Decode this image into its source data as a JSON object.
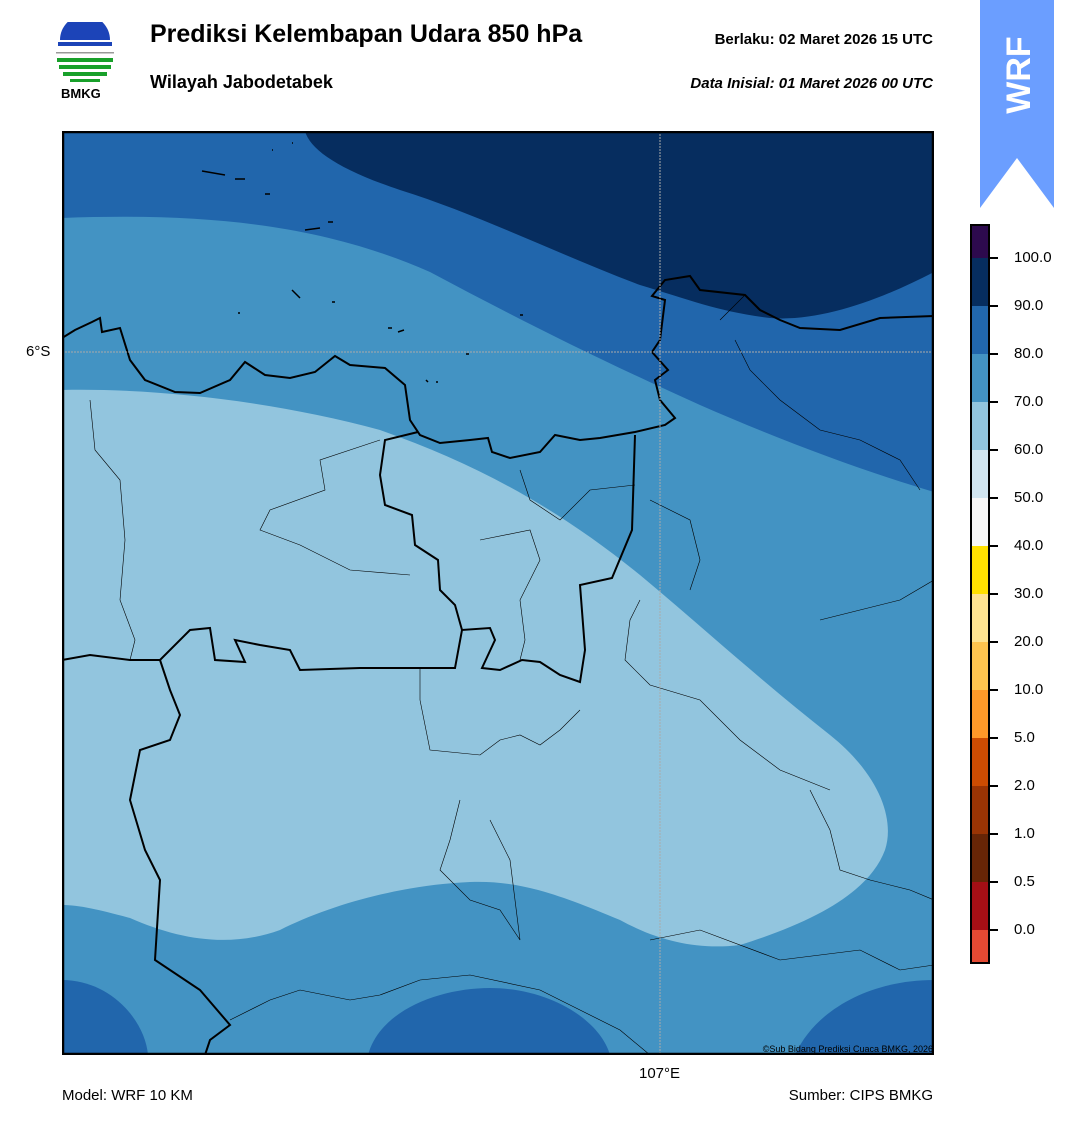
{
  "header": {
    "title": "Prediksi Kelembapan Udara 850 hPa",
    "subtitle": "Wilayah Jabodetabek",
    "valid_label": "Berlaku:  02 Maret 2026 15 UTC",
    "init_label": "Data Inisial:  01 Maret 2026 00 UTC",
    "logo_text": "BMKG",
    "badge_text": "WRF",
    "badge_color": "#6b9eff"
  },
  "map": {
    "lat_label": "6°S",
    "lon_label": "107°E",
    "credit": "©Sub Bidang Prediksi Cuaca BMKG, 2026"
  },
  "colorbar": {
    "colors": [
      "#2d0a4e",
      "#062d5f",
      "#2166ac",
      "#4393c3",
      "#92c5de",
      "#d1e5f0",
      "#f7f7f7",
      "#ffe000",
      "#fee391",
      "#fec44f",
      "#fe9929",
      "#cc4c02",
      "#993404",
      "#662506",
      "#a50f15",
      "#e34a33"
    ],
    "ticks": [
      "100.0",
      "90.0",
      "80.0",
      "70.0",
      "60.0",
      "50.0",
      "40.0",
      "30.0",
      "20.0",
      "10.0",
      "5.0",
      "2.0",
      "1.0",
      "0.5",
      "0.0"
    ]
  },
  "footer": {
    "model": "Model: WRF 10 KM",
    "source": "Sumber: CIPS BMKG"
  }
}
